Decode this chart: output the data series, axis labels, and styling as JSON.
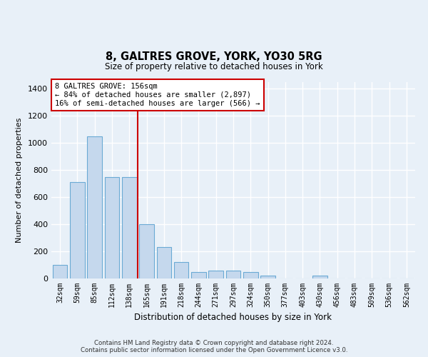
{
  "title": "8, GALTRES GROVE, YORK, YO30 5RG",
  "subtitle": "Size of property relative to detached houses in York",
  "xlabel": "Distribution of detached houses by size in York",
  "ylabel": "Number of detached properties",
  "categories": [
    "32sqm",
    "59sqm",
    "85sqm",
    "112sqm",
    "138sqm",
    "165sqm",
    "191sqm",
    "218sqm",
    "244sqm",
    "271sqm",
    "297sqm",
    "324sqm",
    "350sqm",
    "377sqm",
    "403sqm",
    "430sqm",
    "456sqm",
    "483sqm",
    "509sqm",
    "536sqm",
    "562sqm"
  ],
  "values": [
    100,
    710,
    1050,
    750,
    750,
    400,
    230,
    120,
    50,
    60,
    60,
    50,
    20,
    0,
    0,
    20,
    0,
    0,
    0,
    0,
    0
  ],
  "bar_color": "#c5d8ed",
  "bar_edge_color": "#6aaad4",
  "annotation_text": "8 GALTRES GROVE: 156sqm\n← 84% of detached houses are smaller (2,897)\n16% of semi-detached houses are larger (566) →",
  "annotation_box_color": "#ffffff",
  "annotation_box_edge": "#cc0000",
  "red_line_color": "#cc0000",
  "bg_color": "#e8f0f8",
  "plot_bg_color": "#e8f0f8",
  "grid_color": "#ffffff",
  "footer": "Contains HM Land Registry data © Crown copyright and database right 2024.\nContains public sector information licensed under the Open Government Licence v3.0.",
  "ylim": [
    0,
    1450
  ],
  "yticks": [
    0,
    200,
    400,
    600,
    800,
    1000,
    1200,
    1400
  ]
}
